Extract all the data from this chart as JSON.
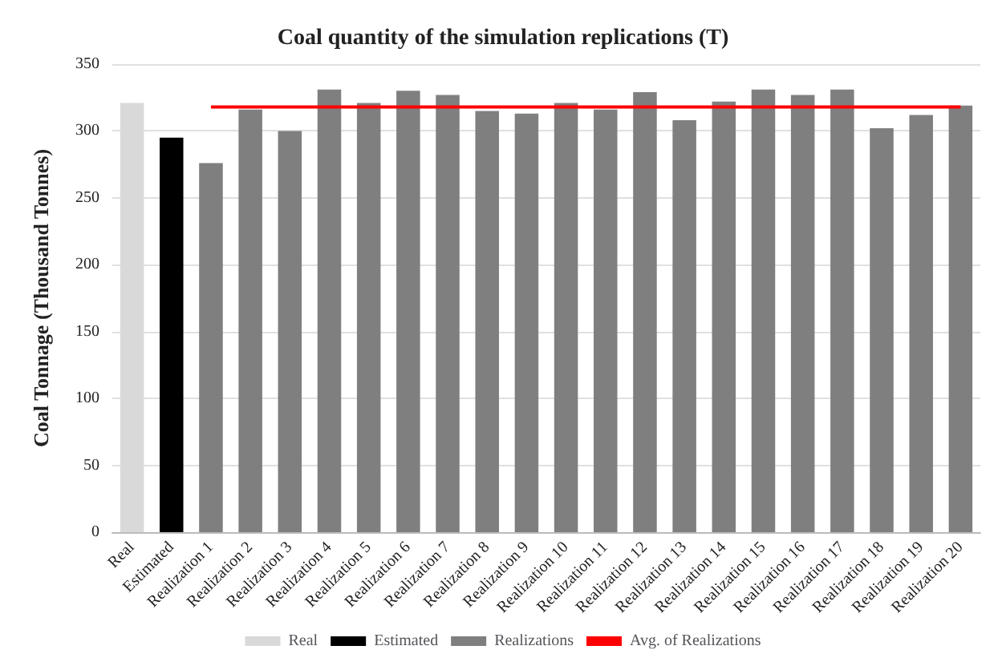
{
  "chart_data": {
    "type": "bar",
    "title": "Coal quantity of the simulation replications (T)",
    "ylabel": "Coal Tonnage (Thousand Tonnes)",
    "categories": [
      "Real",
      "Estimated",
      "Realization 1",
      "Realization 2",
      "Realization 3",
      "Realization 4",
      "Realization 5",
      "Realization 6",
      "Realization 7",
      "Realization 8",
      "Realization 9",
      "Realization 10",
      "Realization 11",
      "Realization 12",
      "Realization 13",
      "Realization 14",
      "Realization 15",
      "Realization 16",
      "Realization 17",
      "Realization 18",
      "Realization 19",
      "Realization 20"
    ],
    "series": [
      {
        "name": "Real",
        "color": "#d9d9d9",
        "values": [
          321,
          null,
          null,
          null,
          null,
          null,
          null,
          null,
          null,
          null,
          null,
          null,
          null,
          null,
          null,
          null,
          null,
          null,
          null,
          null,
          null,
          null
        ]
      },
      {
        "name": "Estimated",
        "color": "#000000",
        "values": [
          null,
          295,
          null,
          null,
          null,
          null,
          null,
          null,
          null,
          null,
          null,
          null,
          null,
          null,
          null,
          null,
          null,
          null,
          null,
          null,
          null,
          null
        ]
      },
      {
        "name": "Realizations",
        "color": "#7f7f7f",
        "values": [
          null,
          null,
          276,
          316,
          300,
          331,
          321,
          330,
          327,
          315,
          313,
          321,
          316,
          329,
          308,
          322,
          331,
          327,
          331,
          302,
          312,
          319
        ]
      },
      {
        "name": "Avg. of Realizations",
        "type": "line",
        "color": "#ff0000",
        "values": [
          null,
          null,
          318,
          318,
          318,
          318,
          318,
          318,
          318,
          318,
          318,
          318,
          318,
          318,
          318,
          318,
          318,
          318,
          318,
          318,
          318,
          318
        ]
      }
    ],
    "stacked": true,
    "ylim": [
      0,
      350
    ],
    "yticks": [
      0,
      50,
      100,
      150,
      200,
      250,
      300,
      350
    ],
    "grid": "y",
    "legend": "bottom",
    "marker": "none"
  }
}
